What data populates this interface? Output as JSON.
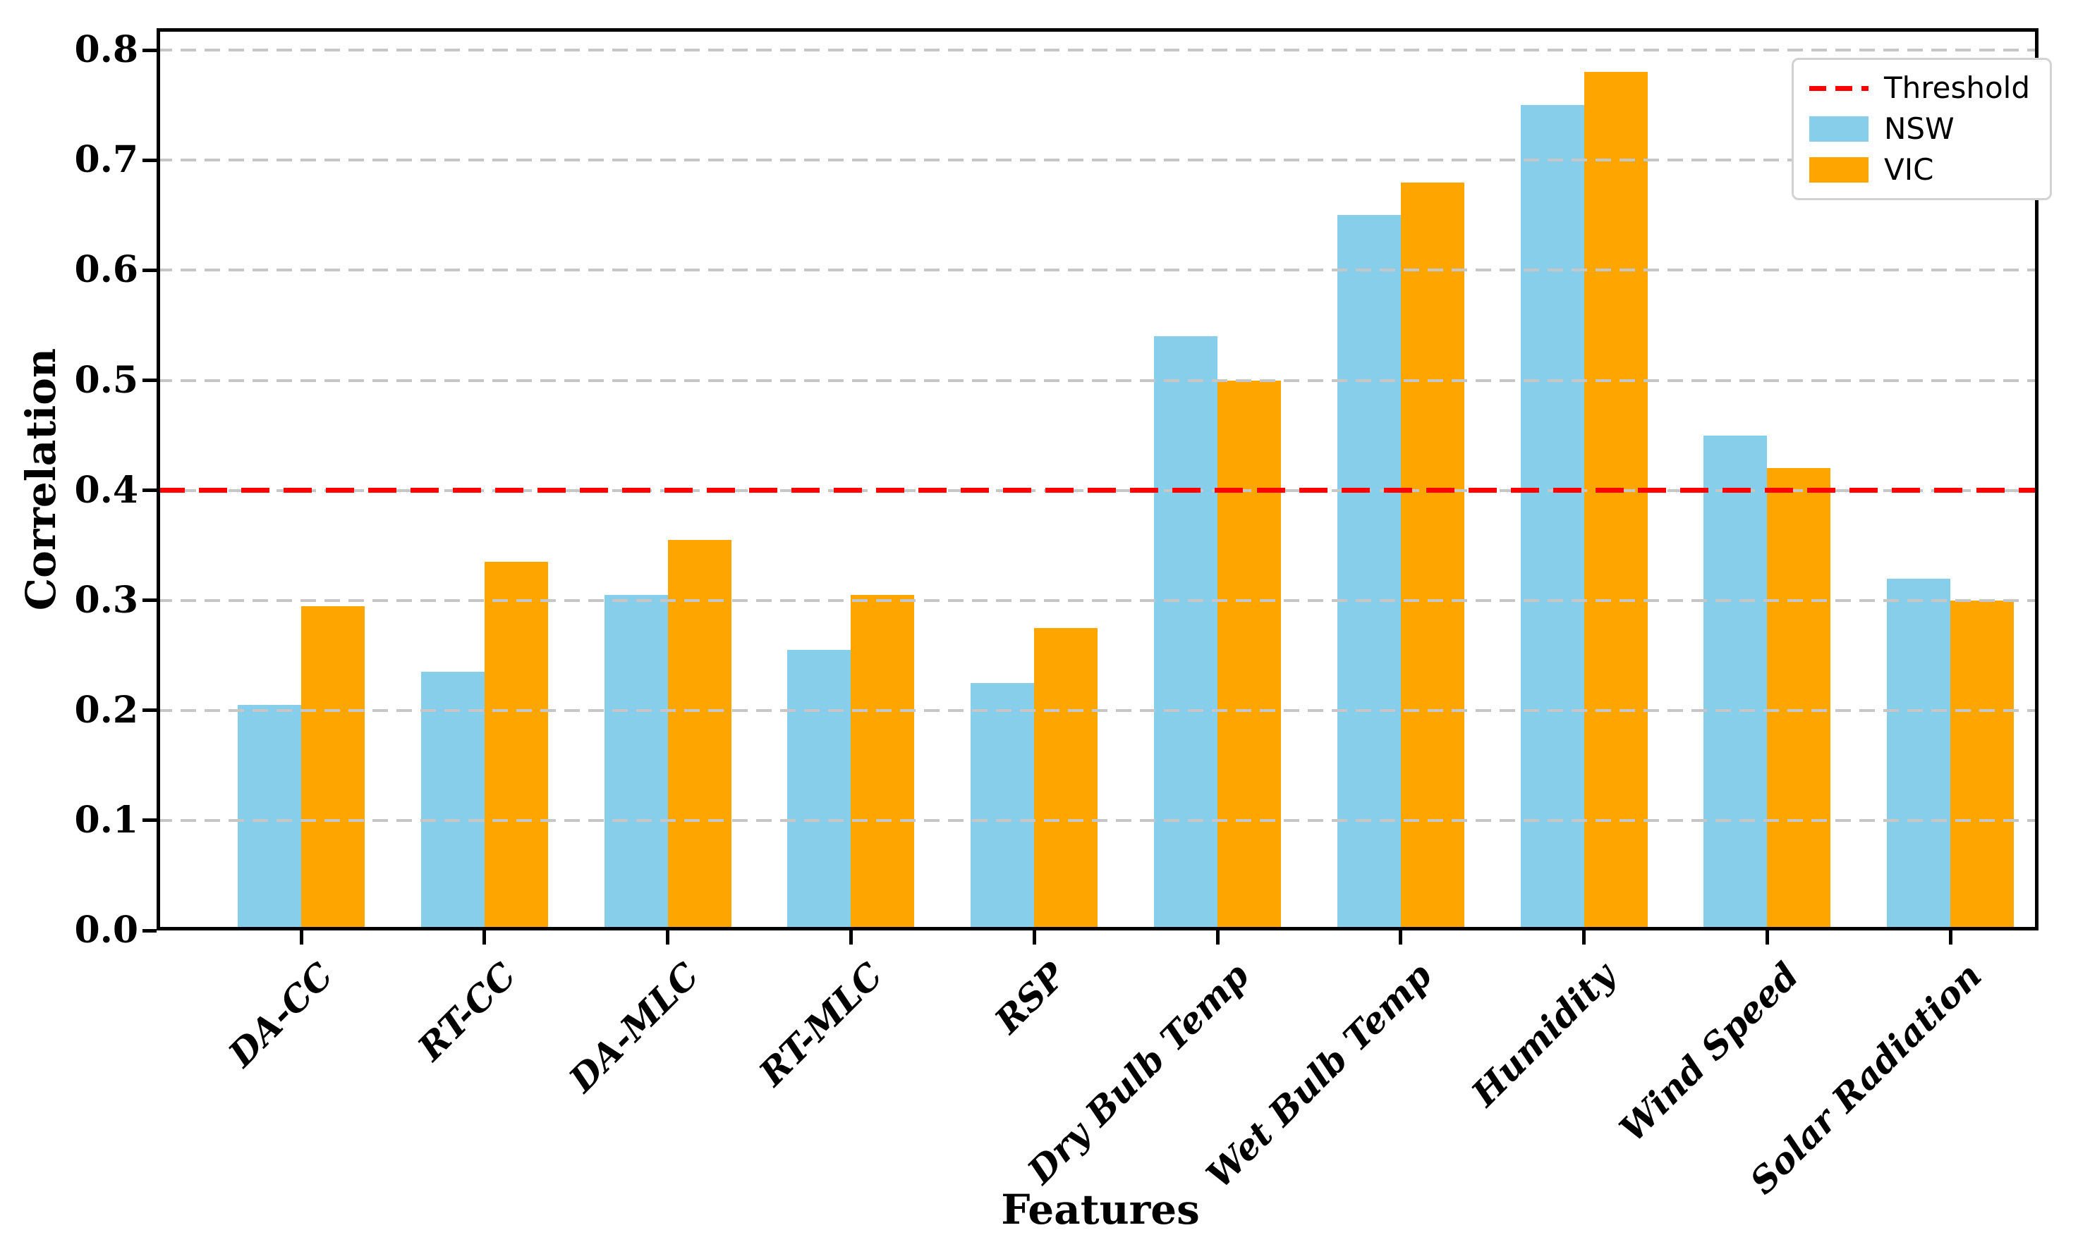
{
  "chart_data": {
    "type": "bar",
    "title": "",
    "xlabel": "Features",
    "ylabel": "Correlation",
    "categories": [
      "DA-CC",
      "RT-CC",
      "DA-MLC",
      "RT-MLC",
      "RSP",
      "Dry Bulb Temp",
      "Wet Bulb Temp",
      "Humidity",
      "Wind Speed",
      "Solar Radiation"
    ],
    "series": [
      {
        "name": "NSW",
        "color": "#87CEEB",
        "values": [
          0.205,
          0.235,
          0.305,
          0.255,
          0.225,
          0.54,
          0.65,
          0.75,
          0.45,
          0.32
        ]
      },
      {
        "name": "VIC",
        "color": "#FFA500",
        "values": [
          0.295,
          0.335,
          0.355,
          0.305,
          0.275,
          0.5,
          0.68,
          0.78,
          0.42,
          0.3
        ]
      }
    ],
    "threshold": {
      "label": "Threshold",
      "value": 0.4,
      "color": "#FF0000",
      "linestyle": "dashed"
    },
    "ylim": [
      0.0,
      0.82
    ],
    "yticks": [
      0.0,
      0.1,
      0.2,
      0.3,
      0.4,
      0.5,
      0.6,
      0.7,
      0.8
    ],
    "ytick_labels": [
      "0.0",
      "0.1",
      "0.2",
      "0.3",
      "0.4",
      "0.5",
      "0.6",
      "0.7",
      "0.8"
    ],
    "grid": true,
    "grid_color": "#C6C6C6",
    "grid_style": "dashed",
    "legend_position": "upper right",
    "legend_order": [
      "Threshold",
      "NSW",
      "VIC"
    ]
  }
}
